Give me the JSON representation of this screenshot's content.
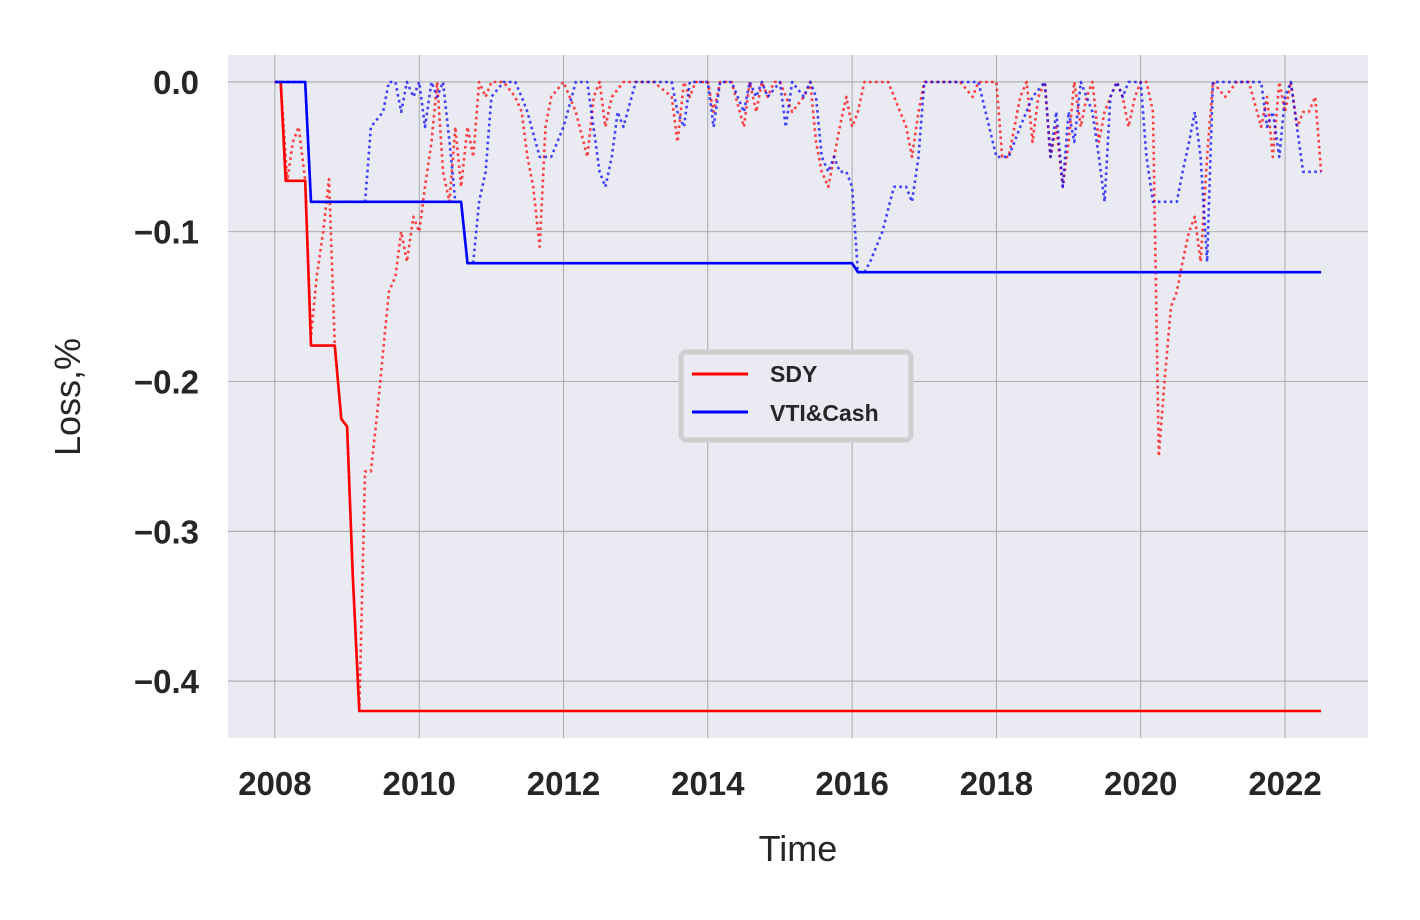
{
  "chart_data": {
    "type": "line",
    "title": "",
    "xlabel": "Time",
    "ylabel": "Loss,%",
    "xlim": [
      2007.35,
      2023.15
    ],
    "ylim": [
      -0.438,
      0.018
    ],
    "xticks": [
      2008,
      2010,
      2012,
      2014,
      2016,
      2018,
      2020,
      2022
    ],
    "xtick_labels": [
      "2008",
      "2010",
      "2012",
      "2014",
      "2016",
      "2018",
      "2020",
      "2022"
    ],
    "yticks": [
      0.0,
      -0.1,
      -0.2,
      -0.3,
      -0.4
    ],
    "ytick_labels": [
      "0.0",
      "−0.1",
      "−0.2",
      "−0.3",
      "−0.4"
    ],
    "grid": true,
    "background": "#eaeaf2",
    "legend": {
      "placement": "center",
      "entries": [
        {
          "label": "SDY",
          "color": "#ff0000"
        },
        {
          "label": "VTI&Cash",
          "color": "#0000ff"
        }
      ]
    },
    "series": [
      {
        "name": "SDY",
        "style": "solid",
        "color": "#ff0000",
        "x": [
          2008.0,
          2008.08,
          2008.15,
          2008.42,
          2008.5,
          2008.83,
          2008.92,
          2009.0,
          2009.08,
          2009.17,
          2022.5
        ],
        "y": [
          0.0,
          0.0,
          -0.066,
          -0.066,
          -0.176,
          -0.176,
          -0.225,
          -0.23,
          -0.33,
          -0.42,
          -0.42
        ]
      },
      {
        "name": "VTI&Cash",
        "style": "solid",
        "color": "#0000ff",
        "x": [
          2008.0,
          2008.42,
          2008.5,
          2010.58,
          2010.67,
          2016.0,
          2016.08,
          2022.5
        ],
        "y": [
          0.0,
          0.0,
          -0.08,
          -0.08,
          -0.121,
          -0.121,
          -0.127,
          -0.127
        ]
      },
      {
        "name": "SDY drawdown",
        "style": "dotted",
        "color": "#ff0000",
        "x": [
          2008.0,
          2008.08,
          2008.17,
          2008.25,
          2008.33,
          2008.42,
          2008.5,
          2008.58,
          2008.67,
          2008.75,
          2008.83,
          2008.92,
          2009.0,
          2009.08,
          2009.17,
          2009.25,
          2009.33,
          2009.42,
          2009.5,
          2009.58,
          2009.67,
          2009.75,
          2009.83,
          2009.92,
          2010.0,
          2010.08,
          2010.17,
          2010.25,
          2010.33,
          2010.42,
          2010.5,
          2010.58,
          2010.67,
          2010.75,
          2010.83,
          2010.92,
          2011.0,
          2011.17,
          2011.33,
          2011.42,
          2011.5,
          2011.58,
          2011.67,
          2011.75,
          2011.83,
          2012.0,
          2012.17,
          2012.33,
          2012.42,
          2012.5,
          2012.58,
          2012.67,
          2012.83,
          2013.0,
          2013.25,
          2013.5,
          2013.58,
          2013.67,
          2013.75,
          2013.83,
          2014.0,
          2014.08,
          2014.17,
          2014.33,
          2014.5,
          2014.58,
          2014.67,
          2014.75,
          2014.83,
          2014.92,
          2015.0,
          2015.17,
          2015.33,
          2015.42,
          2015.5,
          2015.58,
          2015.67,
          2015.75,
          2015.83,
          2015.92,
          2016.0,
          2016.08,
          2016.17,
          2016.25,
          2016.5,
          2016.75,
          2016.83,
          2016.92,
          2017.0,
          2017.25,
          2017.5,
          2017.67,
          2017.75,
          2017.83,
          2018.0,
          2018.08,
          2018.17,
          2018.25,
          2018.33,
          2018.42,
          2018.5,
          2018.58,
          2018.67,
          2018.75,
          2018.83,
          2018.92,
          2019.0,
          2019.08,
          2019.17,
          2019.25,
          2019.33,
          2019.42,
          2019.5,
          2019.58,
          2019.67,
          2019.75,
          2019.83,
          2019.92,
          2020.0,
          2020.08,
          2020.17,
          2020.25,
          2020.33,
          2020.42,
          2020.5,
          2020.58,
          2020.67,
          2020.75,
          2020.83,
          2020.92,
          2021.0,
          2021.17,
          2021.33,
          2021.5,
          2021.67,
          2021.75,
          2021.83,
          2021.92,
          2022.0,
          2022.08,
          2022.17,
          2022.25,
          2022.33,
          2022.42,
          2022.5
        ],
        "y": [
          0.0,
          0.0,
          -0.066,
          -0.04,
          -0.03,
          -0.066,
          -0.17,
          -0.13,
          -0.1,
          -0.065,
          -0.176,
          -0.225,
          -0.23,
          -0.33,
          -0.42,
          -0.26,
          -0.26,
          -0.22,
          -0.18,
          -0.14,
          -0.13,
          -0.1,
          -0.12,
          -0.09,
          -0.1,
          -0.07,
          -0.04,
          0.0,
          -0.06,
          -0.08,
          -0.03,
          -0.07,
          -0.03,
          -0.05,
          0.0,
          -0.01,
          0.0,
          0.0,
          -0.01,
          -0.02,
          -0.05,
          -0.07,
          -0.11,
          -0.03,
          -0.01,
          0.0,
          -0.02,
          -0.05,
          -0.01,
          0.0,
          -0.03,
          -0.01,
          0.0,
          0.0,
          0.0,
          -0.01,
          -0.04,
          0.0,
          -0.01,
          0.0,
          0.0,
          -0.02,
          0.0,
          0.0,
          -0.03,
          0.0,
          -0.02,
          0.0,
          -0.01,
          0.0,
          0.0,
          -0.02,
          -0.01,
          0.0,
          -0.04,
          -0.06,
          -0.07,
          -0.05,
          -0.03,
          -0.01,
          -0.03,
          -0.02,
          0.0,
          0.0,
          0.0,
          -0.03,
          -0.05,
          -0.02,
          0.0,
          0.0,
          0.0,
          -0.01,
          0.0,
          0.0,
          0.0,
          -0.05,
          -0.05,
          -0.03,
          -0.01,
          0.0,
          -0.04,
          -0.01,
          0.0,
          -0.05,
          -0.03,
          -0.07,
          -0.04,
          0.0,
          -0.03,
          -0.01,
          0.0,
          -0.04,
          -0.02,
          -0.01,
          0.0,
          -0.01,
          -0.03,
          -0.01,
          0.0,
          0.0,
          -0.02,
          -0.25,
          -0.2,
          -0.15,
          -0.14,
          -0.12,
          -0.1,
          -0.09,
          -0.12,
          -0.05,
          0.0,
          -0.01,
          0.0,
          0.0,
          -0.03,
          -0.01,
          -0.05,
          0.0,
          -0.02,
          0.0,
          -0.03,
          -0.02,
          -0.02,
          -0.01,
          -0.06
        ]
      },
      {
        "name": "VTI&Cash drawdown",
        "style": "dotted",
        "color": "#0000ff",
        "x": [
          2008.0,
          2008.42,
          2008.5,
          2009.0,
          2009.25,
          2009.33,
          2009.5,
          2009.58,
          2009.67,
          2009.75,
          2009.83,
          2009.92,
          2010.0,
          2010.08,
          2010.17,
          2010.25,
          2010.33,
          2010.42,
          2010.5,
          2010.58,
          2010.67,
          2010.75,
          2010.83,
          2010.92,
          2011.0,
          2011.17,
          2011.33,
          2011.42,
          2011.5,
          2011.67,
          2011.83,
          2012.0,
          2012.17,
          2012.33,
          2012.5,
          2012.58,
          2012.67,
          2012.75,
          2012.83,
          2013.0,
          2013.25,
          2013.5,
          2013.58,
          2013.67,
          2013.75,
          2014.0,
          2014.08,
          2014.17,
          2014.33,
          2014.5,
          2014.58,
          2014.67,
          2014.75,
          2014.83,
          2015.0,
          2015.08,
          2015.17,
          2015.33,
          2015.42,
          2015.5,
          2015.58,
          2015.67,
          2015.75,
          2015.83,
          2015.92,
          2016.0,
          2016.08,
          2016.17,
          2016.25,
          2016.42,
          2016.58,
          2016.67,
          2016.75,
          2016.83,
          2016.92,
          2017.0,
          2017.25,
          2017.5,
          2017.75,
          2018.0,
          2018.17,
          2018.33,
          2018.5,
          2018.67,
          2018.75,
          2018.83,
          2018.92,
          2019.0,
          2019.08,
          2019.17,
          2019.25,
          2019.33,
          2019.42,
          2019.5,
          2019.58,
          2019.67,
          2019.75,
          2019.83,
          2019.92,
          2020.0,
          2020.08,
          2020.17,
          2020.25,
          2020.5,
          2020.58,
          2020.67,
          2020.75,
          2020.83,
          2020.92,
          2021.0,
          2021.17,
          2021.33,
          2021.5,
          2021.67,
          2021.75,
          2021.83,
          2021.92,
          2022.0,
          2022.08,
          2022.25,
          2022.5
        ],
        "y": [
          0.0,
          0.0,
          -0.08,
          -0.08,
          -0.08,
          -0.03,
          -0.02,
          0.0,
          0.0,
          -0.02,
          0.0,
          -0.01,
          0.0,
          -0.03,
          0.0,
          -0.01,
          0.0,
          -0.04,
          -0.08,
          -0.08,
          -0.121,
          -0.12,
          -0.08,
          -0.06,
          -0.01,
          0.0,
          0.0,
          -0.01,
          -0.02,
          -0.05,
          -0.05,
          -0.03,
          0.0,
          0.0,
          -0.06,
          -0.07,
          -0.05,
          -0.02,
          -0.03,
          0.0,
          0.0,
          0.0,
          -0.02,
          -0.03,
          0.0,
          0.0,
          -0.03,
          0.0,
          0.0,
          -0.02,
          0.0,
          -0.01,
          0.0,
          -0.01,
          0.0,
          -0.03,
          0.0,
          -0.01,
          0.0,
          -0.01,
          -0.05,
          -0.06,
          -0.05,
          -0.06,
          -0.06,
          -0.07,
          -0.127,
          -0.127,
          -0.12,
          -0.1,
          -0.07,
          -0.07,
          -0.07,
          -0.08,
          -0.05,
          0.0,
          0.0,
          0.0,
          0.0,
          -0.05,
          -0.05,
          -0.03,
          -0.01,
          0.0,
          -0.05,
          -0.02,
          -0.07,
          -0.02,
          -0.04,
          0.0,
          -0.01,
          -0.02,
          -0.05,
          -0.08,
          -0.01,
          0.0,
          -0.01,
          0.0,
          0.0,
          0.0,
          -0.05,
          -0.08,
          -0.08,
          -0.08,
          -0.06,
          -0.04,
          -0.02,
          -0.05,
          -0.12,
          0.0,
          0.0,
          0.0,
          0.0,
          0.0,
          -0.03,
          -0.02,
          -0.05,
          -0.01,
          0.0,
          -0.06,
          -0.06
        ]
      }
    ]
  }
}
